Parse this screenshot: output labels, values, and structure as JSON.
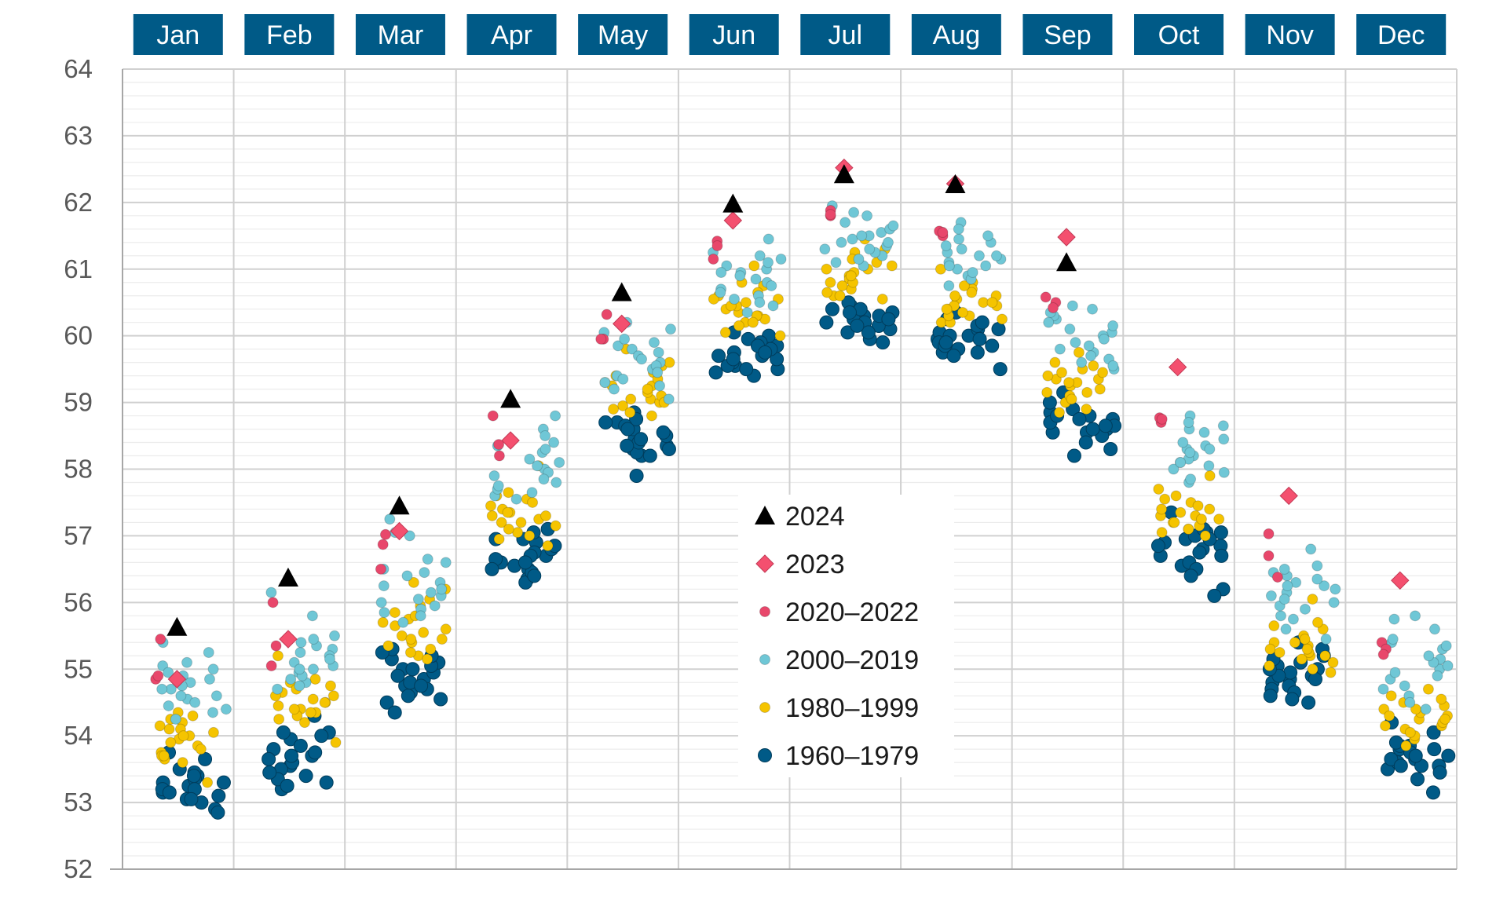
{
  "chart_data": {
    "type": "scatter",
    "title": "",
    "xlabel": "",
    "ylabel": "",
    "ylim": [
      52,
      64
    ],
    "y_ticks": [
      52,
      53,
      54,
      55,
      56,
      57,
      58,
      59,
      60,
      61,
      62,
      63,
      64
    ],
    "categories": [
      "Jan",
      "Feb",
      "Mar",
      "Apr",
      "May",
      "Jun",
      "Jul",
      "Aug",
      "Sep",
      "Oct",
      "Nov",
      "Dec"
    ],
    "grid": {
      "horizontal_major": true,
      "horizontal_minor": true,
      "vertical_month_separators": true
    },
    "legend_position": "center",
    "colors": {
      "header_bg": "#005a87",
      "header_text": "#ffffff",
      "grid_major": "#d0d0d0",
      "grid_minor": "#ececec",
      "axis": "#a6a6a6"
    },
    "series": [
      {
        "name": "2024",
        "marker": "triangle",
        "color": "#000000",
        "values": [
          55.63,
          56.37,
          57.45,
          59.05,
          60.65,
          61.98,
          62.42,
          62.27,
          61.1,
          null,
          null,
          null
        ]
      },
      {
        "name": "2023",
        "marker": "diamond",
        "color": "#f4506f",
        "values": [
          54.85,
          55.45,
          57.07,
          58.43,
          60.18,
          61.73,
          62.52,
          62.28,
          61.48,
          59.53,
          57.6,
          56.33
        ]
      },
      {
        "name": "2020–2022",
        "marker": "circle-small",
        "color": "#e8476b",
        "values": [
          [
            55.45,
            54.85,
            54.9
          ],
          [
            56.0,
            55.35,
            55.05
          ],
          [
            57.02,
            56.87,
            56.5
          ],
          [
            58.8,
            58.37,
            58.2
          ],
          [
            60.32,
            59.95,
            59.95
          ],
          [
            61.42,
            61.35,
            61.15
          ],
          [
            61.88,
            61.8,
            61.82
          ],
          [
            61.5,
            61.57,
            61.55
          ],
          [
            60.58,
            60.5,
            60.42
          ],
          [
            58.7,
            58.77,
            58.75
          ],
          [
            57.03,
            56.7,
            56.38
          ],
          [
            55.4,
            55.3,
            55.22
          ]
        ]
      },
      {
        "name": "2000–2019",
        "marker": "circle-small",
        "color": "#6fc7d6",
        "values": [
          [
            54.55,
            55.05,
            54.7,
            55.4,
            54.35,
            54.9,
            54.6,
            55.1,
            54.8,
            54.45,
            55.0,
            54.25,
            54.75,
            54.95,
            54.6,
            55.25,
            54.4,
            54.85,
            54.7,
            54.5
          ],
          [
            54.85,
            55.1,
            55.35,
            55.8,
            56.15,
            54.95,
            55.3,
            54.7,
            55.05,
            55.5,
            54.8,
            55.2,
            54.9,
            55.45,
            55.0,
            55.25,
            55.15,
            54.75,
            55.4,
            55.0
          ],
          [
            55.7,
            56.1,
            56.6,
            57.25,
            57.05,
            55.9,
            56.25,
            56.45,
            56.0,
            55.8,
            56.65,
            57.0,
            56.15,
            55.95,
            56.3,
            56.5,
            56.05,
            56.2,
            55.85,
            56.4
          ],
          [
            57.6,
            57.8,
            58.0,
            58.35,
            58.8,
            58.4,
            57.55,
            57.7,
            57.95,
            58.1,
            58.25,
            58.6,
            57.85,
            57.65,
            58.05,
            58.5,
            57.75,
            57.9,
            58.15,
            58.3
          ],
          [
            59.4,
            59.6,
            59.8,
            60.1,
            60.2,
            59.5,
            59.05,
            59.3,
            59.85,
            59.95,
            59.55,
            59.35,
            59.7,
            59.2,
            60.05,
            59.45,
            59.75,
            59.65,
            59.25,
            59.9
          ],
          [
            60.55,
            60.8,
            60.95,
            61.2,
            61.45,
            60.35,
            60.7,
            61.05,
            61.15,
            60.6,
            60.9,
            61.25,
            60.45,
            60.85,
            61.0,
            60.75,
            60.65,
            61.1,
            60.5,
            60.95
          ],
          [
            61.2,
            61.4,
            61.55,
            61.85,
            61.95,
            61.05,
            61.3,
            61.45,
            61.7,
            61.15,
            61.35,
            61.5,
            61.25,
            61.6,
            61.1,
            61.8,
            61.4,
            61.3,
            61.65,
            61.5
          ],
          [
            60.9,
            61.05,
            61.2,
            61.45,
            61.7,
            60.75,
            61.1,
            61.3,
            61.55,
            60.85,
            61.0,
            61.25,
            61.35,
            60.95,
            61.15,
            61.6,
            61.4,
            61.05,
            61.2,
            61.5
          ],
          [
            59.5,
            59.75,
            59.9,
            60.05,
            60.25,
            60.45,
            59.65,
            59.85,
            60.0,
            60.3,
            59.55,
            59.95,
            60.1,
            60.35,
            59.7,
            60.2,
            59.8,
            60.15,
            60.4,
            59.6
          ],
          [
            57.8,
            58.1,
            58.3,
            58.45,
            58.8,
            57.95,
            58.2,
            58.05,
            58.35,
            58.6,
            57.85,
            58.15,
            58.25,
            58.7,
            58.0,
            58.4,
            58.55,
            58.1,
            58.3,
            58.65
          ],
          [
            55.45,
            55.8,
            56.0,
            56.3,
            56.8,
            56.25,
            55.95,
            56.15,
            56.4,
            55.6,
            56.05,
            56.55,
            56.2,
            55.9,
            56.35,
            56.1,
            55.75,
            56.45,
            56.25,
            56.5
          ],
          [
            54.4,
            54.7,
            55.0,
            55.15,
            55.4,
            55.75,
            54.6,
            54.85,
            55.05,
            55.3,
            54.5,
            54.95,
            55.1,
            55.45,
            55.8,
            54.75,
            55.2,
            55.35,
            54.9,
            55.6
          ]
        ]
      },
      {
        "name": "1980–1999",
        "marker": "circle-small",
        "color": "#f5c400",
        "values": [
          [
            53.85,
            54.1,
            53.65,
            54.15,
            54.05,
            53.75,
            54.2,
            53.95,
            53.7,
            54.35,
            54.0,
            53.3,
            53.8,
            54.1,
            53.6,
            54.25,
            53.9,
            54.0,
            53.7,
            54.3
          ],
          [
            54.35,
            54.5,
            54.25,
            54.65,
            54.8,
            54.4,
            54.55,
            54.2,
            54.7,
            54.45,
            53.9,
            54.85,
            54.3,
            54.6,
            55.2,
            54.4,
            54.75,
            54.35,
            54.5,
            54.6
          ],
          [
            55.2,
            55.45,
            55.65,
            55.85,
            56.05,
            56.3,
            55.35,
            55.55,
            55.7,
            55.95,
            55.25,
            55.5,
            55.75,
            56.2,
            55.4,
            55.6,
            55.8,
            55.3,
            55.15,
            55.45
          ],
          [
            56.95,
            57.2,
            57.35,
            57.55,
            58.05,
            57.0,
            57.3,
            57.45,
            57.25,
            57.6,
            56.85,
            57.4,
            57.15,
            57.05,
            57.5,
            57.3,
            57.2,
            57.65,
            57.1,
            57.35
          ],
          [
            58.8,
            59.05,
            59.25,
            59.45,
            59.8,
            58.95,
            59.15,
            59.35,
            59.0,
            58.85,
            59.2,
            59.3,
            59.1,
            59.55,
            58.9,
            59.4,
            59.05,
            59.25,
            59.6,
            59.0
          ],
          [
            60.2,
            60.35,
            60.55,
            60.8,
            61.05,
            60.3,
            60.45,
            60.25,
            60.6,
            60.0,
            60.4,
            60.75,
            60.15,
            60.5,
            60.3,
            60.65,
            60.05,
            60.45,
            60.55,
            60.2
          ],
          [
            60.6,
            60.8,
            61.0,
            61.25,
            61.45,
            60.7,
            60.9,
            60.55,
            61.1,
            60.85,
            60.65,
            61.05,
            60.75,
            60.95,
            61.15,
            60.6,
            61.3,
            60.8,
            61.0,
            60.9
          ],
          [
            60.2,
            60.45,
            60.6,
            60.8,
            61.0,
            60.3,
            60.5,
            60.25,
            60.7,
            60.4,
            60.55,
            60.35,
            60.65,
            60.2,
            60.75,
            60.45,
            60.6,
            60.3,
            60.5,
            60.4
          ],
          [
            58.85,
            59.15,
            59.35,
            59.55,
            59.75,
            59.0,
            59.25,
            59.45,
            59.4,
            59.1,
            58.9,
            59.3,
            59.5,
            59.2,
            59.05,
            59.6,
            59.35,
            59.45,
            59.15,
            59.3
          ],
          [
            57.0,
            57.2,
            57.4,
            57.6,
            57.9,
            57.1,
            57.3,
            57.25,
            57.5,
            57.15,
            57.35,
            57.05,
            57.45,
            57.2,
            57.7,
            57.3,
            57.55,
            57.1,
            57.4,
            57.25
          ],
          [
            55.0,
            55.2,
            55.4,
            55.65,
            56.05,
            55.1,
            55.3,
            55.25,
            55.5,
            55.15,
            54.95,
            55.35,
            55.6,
            55.05,
            55.45,
            55.25,
            55.7,
            55.2,
            55.4,
            55.3
          ],
          [
            53.95,
            54.15,
            54.3,
            54.5,
            54.7,
            54.0,
            54.25,
            54.4,
            54.1,
            53.85,
            54.35,
            54.6,
            54.2,
            54.05,
            54.45,
            54.3,
            54.55,
            54.15,
            54.4,
            54.25
          ]
        ]
      },
      {
        "name": "1960–1979",
        "marker": "circle-large",
        "color": "#005a87",
        "values": [
          [
            53.4,
            53.25,
            53.05,
            53.5,
            53.15,
            52.9,
            53.35,
            53.2,
            53.0,
            53.75,
            53.3,
            53.1,
            52.85,
            53.45,
            53.2,
            53.05,
            53.65,
            53.3,
            53.4,
            53.15
          ],
          [
            54.05,
            53.95,
            53.7,
            54.0,
            53.4,
            53.55,
            53.3,
            53.2,
            54.3,
            53.8,
            53.5,
            53.65,
            53.35,
            53.75,
            53.85,
            53.25,
            53.6,
            54.05,
            53.45,
            53.7
          ],
          [
            54.5,
            54.65,
            54.85,
            55.15,
            55.0,
            54.75,
            55.3,
            54.95,
            54.6,
            55.1,
            54.7,
            54.35,
            55.05,
            54.9,
            55.2,
            54.8,
            55.25,
            54.55,
            55.0,
            54.75
          ],
          [
            56.5,
            56.7,
            56.9,
            57.05,
            56.35,
            56.55,
            56.8,
            56.6,
            56.3,
            57.1,
            56.75,
            56.45,
            56.95,
            56.65,
            56.4,
            56.85,
            56.5,
            56.7,
            56.6,
            56.95
          ],
          [
            58.35,
            58.2,
            58.5,
            58.7,
            58.85,
            58.3,
            58.45,
            58.25,
            58.6,
            58.4,
            58.75,
            58.55,
            58.3,
            58.65,
            58.2,
            57.9,
            58.45,
            58.7,
            58.35,
            58.6
          ],
          [
            59.75,
            59.55,
            59.85,
            60.0,
            59.5,
            59.65,
            59.9,
            59.7,
            59.45,
            60.05,
            59.6,
            59.8,
            59.95,
            59.55,
            59.7,
            59.4,
            59.85,
            59.65,
            59.75,
            59.5
          ],
          [
            60.15,
            60.3,
            60.45,
            60.05,
            60.25,
            59.95,
            60.4,
            60.2,
            60.35,
            60.1,
            60.5,
            60.15,
            60.3,
            59.9,
            60.4,
            60.2,
            60.35,
            60.05,
            60.25,
            60.15
          ],
          [
            60.0,
            59.85,
            60.1,
            60.35,
            59.75,
            59.95,
            60.15,
            59.8,
            60.05,
            59.9,
            59.7,
            60.2,
            59.85,
            60.0,
            59.75,
            60.25,
            59.9,
            60.1,
            59.5,
            59.95
          ],
          [
            58.7,
            58.55,
            58.85,
            59.0,
            58.6,
            58.75,
            58.5,
            58.8,
            58.65,
            58.2,
            58.9,
            58.55,
            58.7,
            58.4,
            58.8,
            58.6,
            58.75,
            58.3,
            58.65,
            59.15
          ],
          [
            56.95,
            57.05,
            56.85,
            56.7,
            56.55,
            57.0,
            56.8,
            56.9,
            56.6,
            57.1,
            56.75,
            56.2,
            56.95,
            56.5,
            56.85,
            57.05,
            56.4,
            56.7,
            56.1,
            57.35
          ],
          [
            55.0,
            54.9,
            54.8,
            55.2,
            54.85,
            55.05,
            54.7,
            54.95,
            54.6,
            55.1,
            54.75,
            54.5,
            54.9,
            55.0,
            54.85,
            55.3,
            54.65,
            55.15,
            54.55,
            55.4
          ],
          [
            53.7,
            53.85,
            53.55,
            53.65,
            53.8,
            53.5,
            53.75,
            53.6,
            53.15,
            53.85,
            53.55,
            53.7,
            53.45,
            54.05,
            53.65,
            53.35,
            53.8,
            53.55,
            54.2,
            53.9
          ]
        ]
      }
    ]
  }
}
